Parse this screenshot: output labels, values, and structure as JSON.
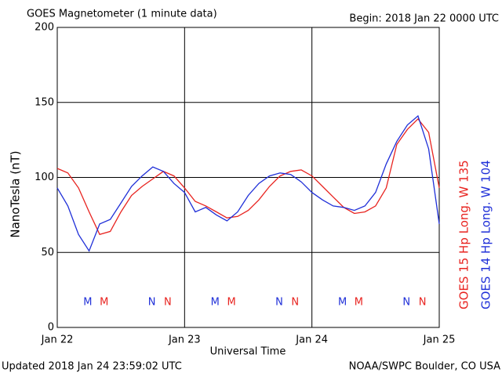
{
  "chart_data": {
    "type": "line",
    "title": "GOES Magnetometer (1 minute data)",
    "subtitle": "Begin:  2018 Jan 22 0000 UTC",
    "y_label": "NanoTesla (nT)",
    "x_label": "Universal Time",
    "footer_left": "Updated 2018 Jan 24 23:59:02 UTC",
    "footer_right": "NOAA/SWPC Boulder, CO USA",
    "grid": true,
    "xlim": [
      "2018-01-22 00:00",
      "2018-01-25 00:00"
    ],
    "xticks": [
      {
        "value": "2018-01-22 00:00",
        "label": "Jan 22"
      },
      {
        "value": "2018-01-23 00:00",
        "label": "Jan 23"
      },
      {
        "value": "2018-01-24 00:00",
        "label": "Jan 24"
      },
      {
        "value": "2018-01-25 00:00",
        "label": "Jan 25"
      }
    ],
    "ylim": [
      0,
      200
    ],
    "yticks": [
      0,
      50,
      100,
      150,
      200
    ],
    "x": [
      "2018-01-22 00:00",
      "2018-01-22 02:00",
      "2018-01-22 04:00",
      "2018-01-22 06:00",
      "2018-01-22 08:00",
      "2018-01-22 10:00",
      "2018-01-22 12:00",
      "2018-01-22 14:00",
      "2018-01-22 16:00",
      "2018-01-22 18:00",
      "2018-01-22 20:00",
      "2018-01-22 22:00",
      "2018-01-23 00:00",
      "2018-01-23 02:00",
      "2018-01-23 04:00",
      "2018-01-23 06:00",
      "2018-01-23 08:00",
      "2018-01-23 10:00",
      "2018-01-23 12:00",
      "2018-01-23 14:00",
      "2018-01-23 16:00",
      "2018-01-23 18:00",
      "2018-01-23 20:00",
      "2018-01-23 22:00",
      "2018-01-24 00:00",
      "2018-01-24 02:00",
      "2018-01-24 04:00",
      "2018-01-24 06:00",
      "2018-01-24 08:00",
      "2018-01-24 10:00",
      "2018-01-24 12:00",
      "2018-01-24 14:00",
      "2018-01-24 16:00",
      "2018-01-24 18:00",
      "2018-01-24 20:00",
      "2018-01-24 22:00",
      "2018-01-25 00:00"
    ],
    "series": [
      {
        "name": "GOES 15 Hp  Long. W 135",
        "color": "#e8231f",
        "values": [
          106,
          103,
          93,
          77,
          62,
          64,
          77,
          88,
          94,
          99,
          104,
          101,
          93,
          84,
          81,
          77,
          73,
          74,
          78,
          85,
          94,
          101,
          104,
          105,
          101,
          94,
          87,
          80,
          76,
          77,
          81,
          93,
          122,
          132,
          139,
          130,
          93
        ]
      },
      {
        "name": "GOES 14 Hp  Long. W 104",
        "color": "#1f2fd8",
        "values": [
          93,
          81,
          62,
          51,
          69,
          72,
          83,
          94,
          101,
          107,
          104,
          96,
          90,
          77,
          80,
          75,
          71,
          77,
          88,
          96,
          101,
          103,
          102,
          97,
          90,
          85,
          81,
          80,
          78,
          81,
          90,
          109,
          124,
          135,
          141,
          119,
          69
        ]
      }
    ],
    "annotations": [
      {
        "text": "M",
        "x": "2018-01-22 05:45",
        "series": 1
      },
      {
        "text": "M",
        "x": "2018-01-22 08:50",
        "series": 0
      },
      {
        "text": "N",
        "x": "2018-01-22 17:50",
        "series": 1
      },
      {
        "text": "N",
        "x": "2018-01-22 20:50",
        "series": 0
      },
      {
        "text": "M",
        "x": "2018-01-23 05:45",
        "series": 1
      },
      {
        "text": "M",
        "x": "2018-01-23 08:50",
        "series": 0
      },
      {
        "text": "N",
        "x": "2018-01-23 17:50",
        "series": 1
      },
      {
        "text": "N",
        "x": "2018-01-23 20:50",
        "series": 0
      },
      {
        "text": "M",
        "x": "2018-01-24 05:45",
        "series": 1
      },
      {
        "text": "M",
        "x": "2018-01-24 08:50",
        "series": 0
      },
      {
        "text": "N",
        "x": "2018-01-24 17:50",
        "series": 1
      },
      {
        "text": "N",
        "x": "2018-01-24 20:50",
        "series": 0
      }
    ]
  }
}
